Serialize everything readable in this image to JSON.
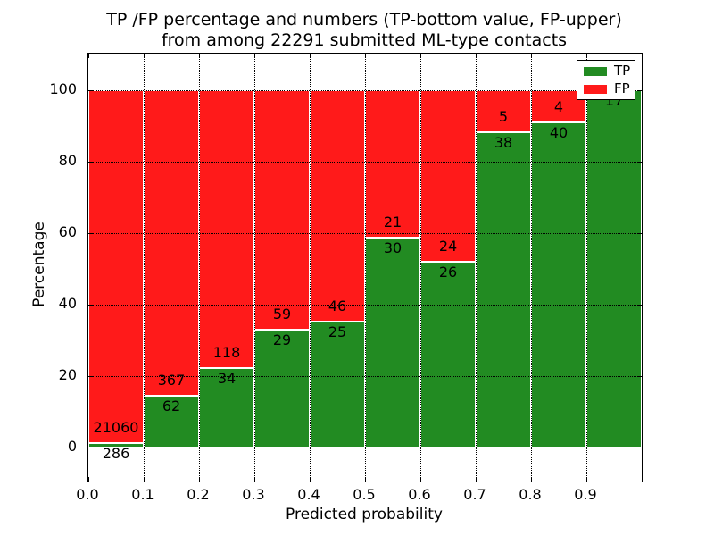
{
  "header": {
    "line1": "TP /FP percentage and numbers (TP-bottom value, FP-upper)",
    "line2": "from among 22291 submitted ML-type contacts"
  },
  "chart_data": {
    "type": "bar",
    "stacked": true,
    "normalized_to_percent": true,
    "title": "TP /FP percentage and numbers (TP-bottom value, FP-upper)\nfrom among 22291 submitted ML-type contacts",
    "xlabel": "Predicted probability",
    "ylabel": "Percentage",
    "total_contacts": 22291,
    "bin_width": 0.1,
    "categories": [
      0.0,
      0.1,
      0.2,
      0.3,
      0.4,
      0.5,
      0.6,
      0.7,
      0.8,
      0.9
    ],
    "series": [
      {
        "name": "TP",
        "color": "#228b22",
        "values": [
          286,
          62,
          34,
          29,
          25,
          30,
          26,
          38,
          40,
          17
        ]
      },
      {
        "name": "FP",
        "color": "#ff1a1a",
        "values": [
          21060,
          367,
          118,
          59,
          46,
          21,
          24,
          5,
          4,
          0
        ]
      }
    ],
    "bar_label_rule": "TP count below segment boundary, FP count above segment boundary",
    "x_ticks": [
      "0.0",
      "0.1",
      "0.2",
      "0.3",
      "0.4",
      "0.5",
      "0.6",
      "0.7",
      "0.8",
      "0.9"
    ],
    "y_ticks": [
      0,
      20,
      40,
      60,
      80,
      100
    ],
    "xlim": [
      0.0,
      1.0
    ],
    "ylim": [
      -9.5,
      110.25
    ],
    "grid": "dotted, drawn above bars",
    "legend_position": "upper right"
  }
}
